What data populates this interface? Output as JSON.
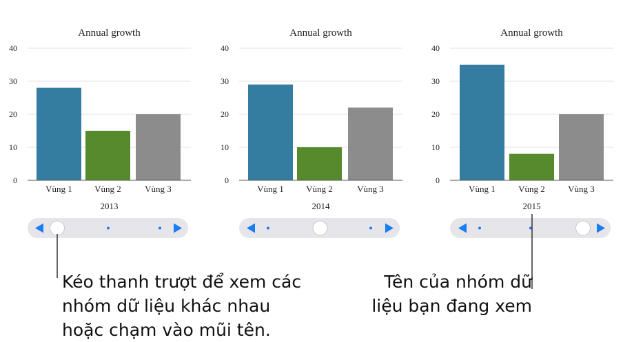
{
  "chart_data": [
    {
      "type": "bar",
      "title": "Annual growth",
      "categories": [
        "Vùng 1",
        "Vùng 2",
        "Vùng 3"
      ],
      "values": [
        28,
        15,
        20
      ],
      "xlabel": "2013",
      "ylim": [
        0,
        40
      ],
      "yticks": [
        0,
        10,
        20,
        30,
        40
      ],
      "grid": true,
      "slider_position": 0,
      "colors": [
        "#357ca1",
        "#568a2c",
        "#8c8c8c"
      ]
    },
    {
      "type": "bar",
      "title": "Annual growth",
      "categories": [
        "Vùng 1",
        "Vùng 2",
        "Vùng 3"
      ],
      "values": [
        29,
        10,
        22
      ],
      "xlabel": "2014",
      "ylim": [
        0,
        40
      ],
      "yticks": [
        0,
        10,
        20,
        30,
        40
      ],
      "grid": true,
      "slider_position": 0.5,
      "colors": [
        "#357ca1",
        "#568a2c",
        "#8c8c8c"
      ]
    },
    {
      "type": "bar",
      "title": "Annual growth",
      "categories": [
        "Vùng 1",
        "Vùng 2",
        "Vùng 3"
      ],
      "values": [
        35,
        8,
        20
      ],
      "xlabel": "2015",
      "ylim": [
        0,
        40
      ],
      "yticks": [
        0,
        10,
        20,
        30,
        40
      ],
      "grid": true,
      "slider_position": 1,
      "colors": [
        "#357ca1",
        "#568a2c",
        "#8c8c8c"
      ]
    }
  ],
  "slider": {
    "left_arrow_icon": "left-triangle-icon",
    "right_arrow_icon": "right-triangle-icon",
    "accent_color": "#1a7ef2",
    "track_color": "#e5e5ea"
  },
  "annotations": {
    "left_text": [
      "Kéo thanh trượt để xem các",
      "nhóm dữ liệu khác nhau",
      "hoặc chạm vào mũi tên."
    ],
    "right_text": [
      "Tên của nhóm dữ",
      "liệu bạn đang xem"
    ]
  }
}
